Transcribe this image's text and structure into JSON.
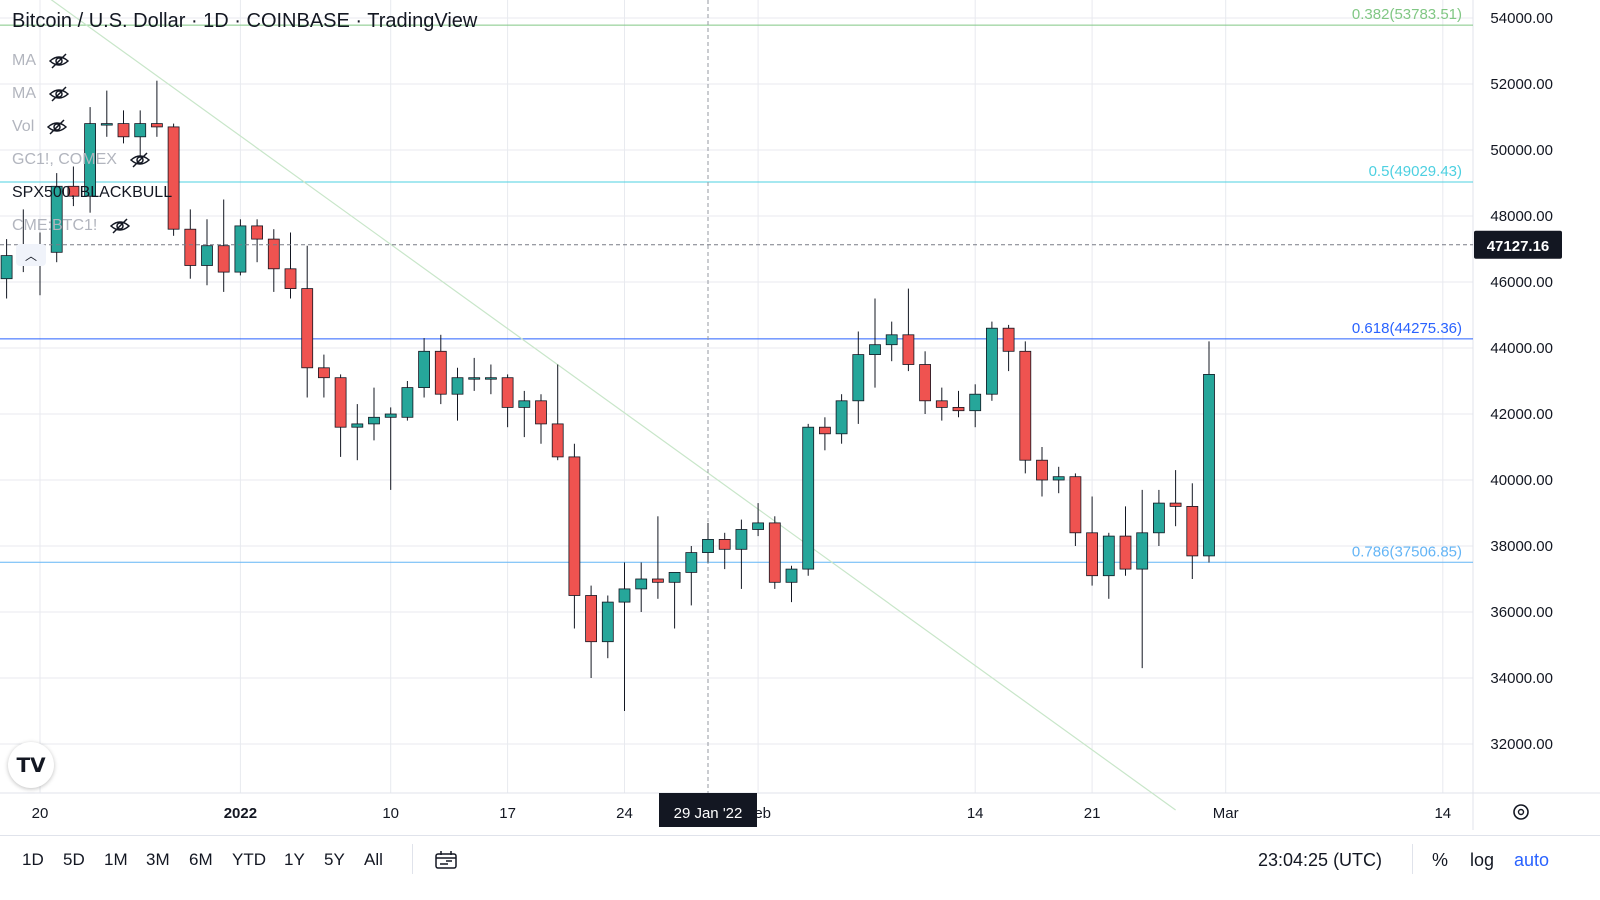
{
  "header": {
    "title": "Bitcoin / U.S. Dollar · 1D · COINBASE · TradingView"
  },
  "indicators": [
    {
      "label": "MA",
      "hidden": true
    },
    {
      "label": "MA",
      "hidden": true
    },
    {
      "label": "Vol",
      "hidden": true
    },
    {
      "label": "GC1!, COMEX",
      "hidden": true
    },
    {
      "label": "SPX500, BLACKBULL",
      "hidden": false
    },
    {
      "label": "CME:BTC1!",
      "hidden": true
    }
  ],
  "colors": {
    "up": "#26a69a",
    "down": "#ef5350",
    "wick": "#131722",
    "grid": "#e8eaef"
  },
  "chart_data": {
    "type": "candlestick",
    "title": "Bitcoin / U.S. Dollar",
    "ylim": [
      31000,
      55000
    ],
    "y_ticks": [
      32000,
      34000,
      36000,
      38000,
      40000,
      42000,
      44000,
      46000,
      48000,
      50000,
      52000,
      54000
    ],
    "y_tick_labels": [
      "32000.00",
      "34000.00",
      "36000.00",
      "38000.00",
      "40000.00",
      "42000.00",
      "44000.00",
      "46000.00",
      "48000.00",
      "50000.00",
      "52000.00",
      "54000.00"
    ],
    "x_labels": [
      {
        "text": "20",
        "date": "2021-12-20",
        "bold": false
      },
      {
        "text": "2022",
        "date": "2022-01-01",
        "bold": true
      },
      {
        "text": "10",
        "date": "2022-01-10",
        "bold": false
      },
      {
        "text": "17",
        "date": "2022-01-17",
        "bold": false
      },
      {
        "text": "24",
        "date": "2022-01-24",
        "bold": false
      },
      {
        "text": "Feb",
        "date": "2022-02-01",
        "bold": false
      },
      {
        "text": "14",
        "date": "2022-02-14",
        "bold": false
      },
      {
        "text": "21",
        "date": "2022-02-21",
        "bold": false
      },
      {
        "text": "Mar",
        "date": "2022-03-01",
        "bold": false
      },
      {
        "text": "14",
        "date": "2022-03-14",
        "bold": false
      }
    ],
    "current_price": {
      "value": 47127.16,
      "label": "47127.16"
    },
    "crosshair": {
      "date": "2022-01-29",
      "label": "29 Jan '22"
    },
    "fib_levels": [
      {
        "label": "0.382(53783.51)",
        "value": 53783.51,
        "color": "#81c784"
      },
      {
        "label": "0.5(49029.43)",
        "value": 49029.43,
        "color": "#4dd0e1"
      },
      {
        "label": "0.618(44275.36)",
        "value": 44275.36,
        "color": "#2962ff"
      },
      {
        "label": "0.786(37506.85)",
        "value": 37506.85,
        "color": "#64b5f6"
      }
    ],
    "trendline": {
      "start": [
        "2021-12-20",
        54800
      ],
      "end": [
        "2022-02-26",
        30000
      ]
    },
    "candles": [
      {
        "date": "2021-12-18",
        "open": 46100,
        "high": 47300,
        "low": 45500,
        "close": 46800
      },
      {
        "date": "2021-12-19",
        "open": 46800,
        "high": 48200,
        "low": 46300,
        "close": 46650
      },
      {
        "date": "2021-12-20",
        "open": 46650,
        "high": 47500,
        "low": 45600,
        "close": 46900
      },
      {
        "date": "2021-12-21",
        "open": 46900,
        "high": 49300,
        "low": 46600,
        "close": 48900
      },
      {
        "date": "2021-12-22",
        "open": 48900,
        "high": 49500,
        "low": 48300,
        "close": 48600
      },
      {
        "date": "2021-12-23",
        "open": 48600,
        "high": 51300,
        "low": 48100,
        "close": 50800
      },
      {
        "date": "2021-12-24",
        "open": 50800,
        "high": 51800,
        "low": 50400,
        "close": 50800
      },
      {
        "date": "2021-12-25",
        "open": 50800,
        "high": 51200,
        "low": 50200,
        "close": 50400
      },
      {
        "date": "2021-12-26",
        "open": 50400,
        "high": 51200,
        "low": 49800,
        "close": 50800
      },
      {
        "date": "2021-12-27",
        "open": 50800,
        "high": 52100,
        "low": 50400,
        "close": 50700
      },
      {
        "date": "2021-12-28",
        "open": 50700,
        "high": 50800,
        "low": 47400,
        "close": 47600
      },
      {
        "date": "2021-12-29",
        "open": 47600,
        "high": 48200,
        "low": 46100,
        "close": 46500
      },
      {
        "date": "2021-12-30",
        "open": 46500,
        "high": 47900,
        "low": 45900,
        "close": 47100
      },
      {
        "date": "2021-12-31",
        "open": 47100,
        "high": 48500,
        "low": 45700,
        "close": 46300
      },
      {
        "date": "2022-01-01",
        "open": 46300,
        "high": 47900,
        "low": 46200,
        "close": 47700
      },
      {
        "date": "2022-01-02",
        "open": 47700,
        "high": 47900,
        "low": 46600,
        "close": 47300
      },
      {
        "date": "2022-01-03",
        "open": 47300,
        "high": 47600,
        "low": 45700,
        "close": 46400
      },
      {
        "date": "2022-01-04",
        "open": 46400,
        "high": 47500,
        "low": 45500,
        "close": 45800
      },
      {
        "date": "2022-01-05",
        "open": 45800,
        "high": 47100,
        "low": 42500,
        "close": 43400
      },
      {
        "date": "2022-01-06",
        "open": 43400,
        "high": 43800,
        "low": 42500,
        "close": 43100
      },
      {
        "date": "2022-01-07",
        "open": 43100,
        "high": 43200,
        "low": 40700,
        "close": 41600
      },
      {
        "date": "2022-01-08",
        "open": 41600,
        "high": 42300,
        "low": 40600,
        "close": 41700
      },
      {
        "date": "2022-01-09",
        "open": 41700,
        "high": 42800,
        "low": 41200,
        "close": 41900
      },
      {
        "date": "2022-01-10",
        "open": 41900,
        "high": 42200,
        "low": 39700,
        "close": 42000
      },
      {
        "date": "2022-01-11",
        "open": 41900,
        "high": 43000,
        "low": 41800,
        "close": 42800
      },
      {
        "date": "2022-01-12",
        "open": 42800,
        "high": 44300,
        "low": 42500,
        "close": 43900
      },
      {
        "date": "2022-01-13",
        "open": 43900,
        "high": 44400,
        "low": 42300,
        "close": 42600
      },
      {
        "date": "2022-01-14",
        "open": 42600,
        "high": 43400,
        "low": 41800,
        "close": 43100
      },
      {
        "date": "2022-01-15",
        "open": 43100,
        "high": 43700,
        "low": 42700,
        "close": 43100
      },
      {
        "date": "2022-01-16",
        "open": 43100,
        "high": 43500,
        "low": 42600,
        "close": 43100
      },
      {
        "date": "2022-01-17",
        "open": 43100,
        "high": 43200,
        "low": 41600,
        "close": 42200
      },
      {
        "date": "2022-01-18",
        "open": 42200,
        "high": 42700,
        "low": 41300,
        "close": 42400
      },
      {
        "date": "2022-01-19",
        "open": 42400,
        "high": 42600,
        "low": 41100,
        "close": 41700
      },
      {
        "date": "2022-01-20",
        "open": 41700,
        "high": 43500,
        "low": 40600,
        "close": 40700
      },
      {
        "date": "2022-01-21",
        "open": 40700,
        "high": 41100,
        "low": 35500,
        "close": 36500
      },
      {
        "date": "2022-01-22",
        "open": 36500,
        "high": 36800,
        "low": 34000,
        "close": 35100
      },
      {
        "date": "2022-01-23",
        "open": 35100,
        "high": 36500,
        "low": 34600,
        "close": 36300
      },
      {
        "date": "2022-01-24",
        "open": 36300,
        "high": 37500,
        "low": 33000,
        "close": 36700
      },
      {
        "date": "2022-01-25",
        "open": 36700,
        "high": 37500,
        "low": 36000,
        "close": 37000
      },
      {
        "date": "2022-01-26",
        "open": 37000,
        "high": 38900,
        "low": 36400,
        "close": 36900
      },
      {
        "date": "2022-01-27",
        "open": 36900,
        "high": 37200,
        "low": 35500,
        "close": 37200
      },
      {
        "date": "2022-01-28",
        "open": 37200,
        "high": 38000,
        "low": 36200,
        "close": 37800
      },
      {
        "date": "2022-01-29",
        "open": 37800,
        "high": 38700,
        "low": 37500,
        "close": 38200
      },
      {
        "date": "2022-01-30",
        "open": 38200,
        "high": 38400,
        "low": 37300,
        "close": 37900
      },
      {
        "date": "2022-01-31",
        "open": 37900,
        "high": 38800,
        "low": 36700,
        "close": 38500
      },
      {
        "date": "2022-02-01",
        "open": 38500,
        "high": 39300,
        "low": 38300,
        "close": 38700
      },
      {
        "date": "2022-02-02",
        "open": 38700,
        "high": 38900,
        "low": 36700,
        "close": 36900
      },
      {
        "date": "2022-02-03",
        "open": 36900,
        "high": 37400,
        "low": 36300,
        "close": 37300
      },
      {
        "date": "2022-02-04",
        "open": 37300,
        "high": 41700,
        "low": 37100,
        "close": 41600
      },
      {
        "date": "2022-02-05",
        "open": 41600,
        "high": 41900,
        "low": 40900,
        "close": 41400
      },
      {
        "date": "2022-02-06",
        "open": 41400,
        "high": 42600,
        "low": 41100,
        "close": 42400
      },
      {
        "date": "2022-02-07",
        "open": 42400,
        "high": 44500,
        "low": 41700,
        "close": 43800
      },
      {
        "date": "2022-02-08",
        "open": 43800,
        "high": 45500,
        "low": 42800,
        "close": 44100
      },
      {
        "date": "2022-02-09",
        "open": 44100,
        "high": 44800,
        "low": 43600,
        "close": 44400
      },
      {
        "date": "2022-02-10",
        "open": 44400,
        "high": 45800,
        "low": 43300,
        "close": 43500
      },
      {
        "date": "2022-02-11",
        "open": 43500,
        "high": 43900,
        "low": 42000,
        "close": 42400
      },
      {
        "date": "2022-02-12",
        "open": 42400,
        "high": 42800,
        "low": 41800,
        "close": 42200
      },
      {
        "date": "2022-02-13",
        "open": 42200,
        "high": 42700,
        "low": 41900,
        "close": 42100
      },
      {
        "date": "2022-02-14",
        "open": 42100,
        "high": 42900,
        "low": 41600,
        "close": 42600
      },
      {
        "date": "2022-02-15",
        "open": 42600,
        "high": 44800,
        "low": 42400,
        "close": 44600
      },
      {
        "date": "2022-02-16",
        "open": 44600,
        "high": 44700,
        "low": 43300,
        "close": 43900
      },
      {
        "date": "2022-02-17",
        "open": 43900,
        "high": 44200,
        "low": 40200,
        "close": 40600
      },
      {
        "date": "2022-02-18",
        "open": 40600,
        "high": 41000,
        "low": 39500,
        "close": 40000
      },
      {
        "date": "2022-02-19",
        "open": 40000,
        "high": 40400,
        "low": 39600,
        "close": 40100
      },
      {
        "date": "2022-02-20",
        "open": 40100,
        "high": 40200,
        "low": 38000,
        "close": 38400
      },
      {
        "date": "2022-02-21",
        "open": 38400,
        "high": 39500,
        "low": 36800,
        "close": 37100
      },
      {
        "date": "2022-02-22",
        "open": 37100,
        "high": 38400,
        "low": 36400,
        "close": 38300
      },
      {
        "date": "2022-02-23",
        "open": 38300,
        "high": 39200,
        "low": 37100,
        "close": 37300
      },
      {
        "date": "2022-02-24",
        "open": 37300,
        "high": 39700,
        "low": 34300,
        "close": 38400
      },
      {
        "date": "2022-02-25",
        "open": 38400,
        "high": 39700,
        "low": 38000,
        "close": 39300
      },
      {
        "date": "2022-02-26",
        "open": 39300,
        "high": 40300,
        "low": 38600,
        "close": 39200
      },
      {
        "date": "2022-02-27",
        "open": 39200,
        "high": 39900,
        "low": 37000,
        "close": 37700
      },
      {
        "date": "2022-02-28",
        "open": 37700,
        "high": 44200,
        "low": 37500,
        "close": 43200
      }
    ]
  },
  "bottom_bar": {
    "ranges": [
      "1D",
      "5D",
      "1M",
      "3M",
      "6M",
      "YTD",
      "1Y",
      "5Y",
      "All"
    ],
    "time": "23:04:25 (UTC)",
    "percent": "%",
    "log": "log",
    "auto": "auto"
  }
}
